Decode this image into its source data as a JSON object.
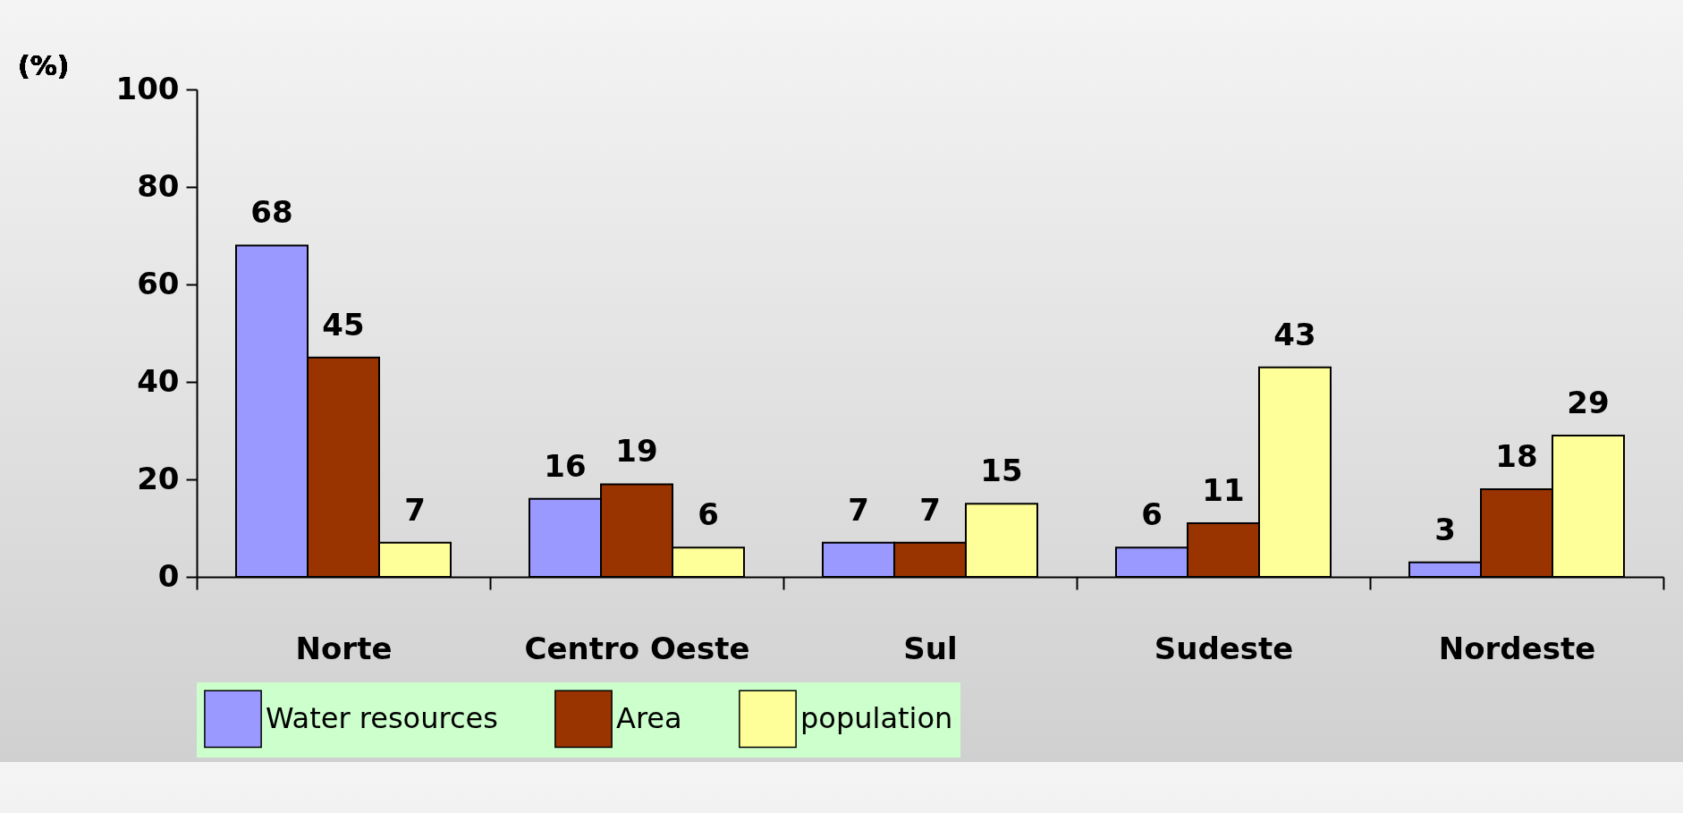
{
  "chart_data": {
    "type": "bar",
    "ylabel": "(%)",
    "categories": [
      "Norte",
      "Centro Oeste",
      "Sul",
      "Sudeste",
      "Nordeste"
    ],
    "series": [
      {
        "name": "Water resources",
        "color": "#9999ff",
        "values": [
          68,
          16,
          7,
          6,
          3
        ]
      },
      {
        "name": "Area",
        "color": "#993300",
        "values": [
          45,
          19,
          7,
          11,
          18
        ]
      },
      {
        "name": "population",
        "color": "#ffff99",
        "values": [
          7,
          6,
          15,
          43,
          29
        ]
      }
    ],
    "ylim": [
      0,
      100
    ],
    "yticks": [
      0,
      20,
      40,
      60,
      80,
      100
    ],
    "grid": false,
    "legend": "bottom",
    "data_labels": true
  }
}
